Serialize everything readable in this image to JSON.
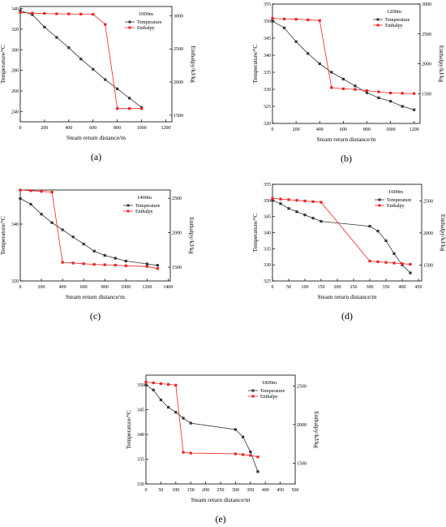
{
  "chart_data": [
    {
      "panel": "(a)",
      "type": "line",
      "legend_title": "1000m",
      "xlabel": "Steam return distance/m",
      "ylabel": "Temperature/°C",
      "y2label": "Enthalpy/kJ/kg",
      "xlim": [
        0,
        1250
      ],
      "ylim": [
        230,
        342
      ],
      "y2lim": [
        1400,
        3140
      ],
      "xticks": [
        0,
        200,
        400,
        600,
        800,
        1000,
        1200
      ],
      "yticks": [
        240,
        260,
        280,
        300,
        320,
        340
      ],
      "y2ticks": [
        1500,
        2000,
        2500,
        3000
      ],
      "series": [
        {
          "name": "Temperature",
          "axis": "left",
          "color": "#333333",
          "marker": "square",
          "x": [
            0,
            100,
            200,
            300,
            400,
            500,
            600,
            700,
            800,
            900,
            1000
          ],
          "y": [
            338,
            334,
            322,
            312,
            302,
            291,
            281,
            271,
            262,
            253,
            244
          ]
        },
        {
          "name": "Enthalpy",
          "axis": "right",
          "color": "#ee2222",
          "marker": "square",
          "x": [
            0,
            100,
            200,
            300,
            400,
            500,
            600,
            700,
            800,
            900,
            1000
          ],
          "y": [
            3050,
            3040,
            3035,
            3030,
            3028,
            3025,
            3022,
            2870,
            1600,
            1600,
            1600
          ]
        }
      ]
    },
    {
      "panel": "(b)",
      "type": "line",
      "legend_title": "1200m",
      "xlabel": "Steam return distance/m",
      "ylabel": "Temperature/°C",
      "y2label": "Enthalpy/kJ/kg",
      "xlim": [
        0,
        1250
      ],
      "ylim": [
        320,
        355
      ],
      "y2lim": [
        1000,
        3000
      ],
      "xticks": [
        0,
        200,
        400,
        600,
        800,
        1000,
        1200
      ],
      "yticks": [
        320,
        325,
        330,
        335,
        340,
        345,
        350,
        355
      ],
      "y2ticks": [
        1500,
        2000,
        2500,
        3000
      ],
      "series": [
        {
          "name": "Temperature",
          "axis": "left",
          "color": "#333333",
          "marker": "square",
          "x": [
            0,
            100,
            200,
            300,
            400,
            500,
            600,
            700,
            800,
            900,
            1000,
            1100,
            1200
          ],
          "y": [
            350,
            348,
            344,
            340.5,
            337.5,
            335,
            333,
            331,
            329,
            327.5,
            326.5,
            325,
            324
          ]
        },
        {
          "name": "Enthalpy",
          "axis": "right",
          "color": "#ee2222",
          "marker": "square",
          "x": [
            0,
            100,
            200,
            300,
            400,
            500,
            600,
            700,
            800,
            900,
            1000,
            1100,
            1200
          ],
          "y": [
            2760,
            2750,
            2745,
            2735,
            2725,
            1600,
            1580,
            1570,
            1550,
            1530,
            1510,
            1505,
            1500
          ]
        }
      ]
    },
    {
      "panel": "(c)",
      "type": "line",
      "legend_title": "1400m",
      "xlabel": "Steam return distance/m",
      "ylabel": "Temperature/°C",
      "y2label": "Enthalpy/kJ/kg",
      "xlim": [
        0,
        1420
      ],
      "ylim": [
        320,
        352
      ],
      "y2lim": [
        1300,
        2620
      ],
      "xticks": [
        0,
        200,
        400,
        600,
        800,
        1000,
        1200,
        1400
      ],
      "yticks": [
        320,
        340
      ],
      "y2ticks": [
        1500,
        2000,
        2500
      ],
      "series": [
        {
          "name": "Temperature",
          "axis": "left",
          "color": "#333333",
          "marker": "square",
          "x": [
            0,
            100,
            200,
            300,
            400,
            500,
            600,
            700,
            800,
            900,
            1000,
            1200,
            1300
          ],
          "y": [
            349,
            347,
            343.5,
            340.5,
            338,
            335.5,
            333,
            330.5,
            329,
            328,
            327,
            326,
            325.5
          ]
        },
        {
          "name": "Enthalpy",
          "axis": "right",
          "color": "#ee2222",
          "marker": "square",
          "x": [
            0,
            100,
            200,
            300,
            400,
            500,
            600,
            700,
            800,
            900,
            1000,
            1200,
            1300
          ],
          "y": [
            2620,
            2610,
            2600,
            2590,
            1570,
            1560,
            1550,
            1540,
            1535,
            1530,
            1520,
            1510,
            1480
          ]
        }
      ]
    },
    {
      "panel": "(d)",
      "type": "line",
      "legend_title": "1600m",
      "xlabel": "Steam return distance/m",
      "ylabel": "Temperature/°C",
      "y2label": "Enthalpy/kJ/kg",
      "xlim": [
        0,
        460
      ],
      "ylim": [
        325,
        355
      ],
      "y2lim": [
        1250,
        2760
      ],
      "xticks": [
        0,
        50,
        100,
        150,
        200,
        250,
        300,
        350,
        400,
        450
      ],
      "yticks": [
        325,
        330,
        335,
        340,
        345,
        350,
        355
      ],
      "y2ticks": [
        1500,
        2000,
        2500
      ],
      "series": [
        {
          "name": "Temperature",
          "axis": "left",
          "color": "#333333",
          "marker": "square",
          "x": [
            0,
            25,
            50,
            75,
            100,
            125,
            150,
            300,
            325,
            350,
            375,
            400,
            425
          ],
          "y": [
            350,
            349,
            347.5,
            346.5,
            345.5,
            344.5,
            343.5,
            342,
            340.5,
            337.5,
            333.5,
            330,
            327.5
          ]
        },
        {
          "name": "Enthalpy",
          "axis": "right",
          "color": "#ee2222",
          "marker": "square",
          "x": [
            0,
            25,
            50,
            75,
            100,
            125,
            150,
            300,
            325,
            350,
            375,
            400,
            425
          ],
          "y": [
            2540,
            2530,
            2520,
            2510,
            2500,
            2490,
            2480,
            1560,
            1550,
            1540,
            1530,
            1520,
            1510
          ]
        }
      ]
    },
    {
      "panel": "(e)",
      "type": "line",
      "legend_title": "1800m",
      "xlabel": "Steam return distance/m",
      "ylabel": "Temperature/°C",
      "y2label": "Enthalpy/kJ/kg",
      "xlim": [
        0,
        500
      ],
      "ylim": [
        330,
        352
      ],
      "y2lim": [
        1230,
        2640
      ],
      "xticks": [
        0,
        50,
        100,
        150,
        200,
        250,
        300,
        350,
        400,
        450,
        500
      ],
      "yticks": [
        330,
        335,
        340,
        345,
        350
      ],
      "y2ticks": [
        1500,
        2000,
        2500
      ],
      "series": [
        {
          "name": "Temperature",
          "axis": "left",
          "color": "#333333",
          "marker": "square",
          "x": [
            0,
            25,
            50,
            75,
            100,
            125,
            150,
            300,
            325,
            350,
            375
          ],
          "y": [
            350,
            349,
            347,
            345.5,
            344.5,
            343.3,
            342.3,
            341,
            339.5,
            336.5,
            332.5
          ]
        },
        {
          "name": "Enthalpy",
          "axis": "right",
          "color": "#ee2222",
          "marker": "square",
          "x": [
            0,
            25,
            50,
            75,
            100,
            125,
            150,
            300,
            325,
            350,
            375
          ],
          "y": [
            2550,
            2540,
            2530,
            2520,
            2510,
            1640,
            1630,
            1620,
            1610,
            1600,
            1580
          ]
        }
      ]
    }
  ]
}
